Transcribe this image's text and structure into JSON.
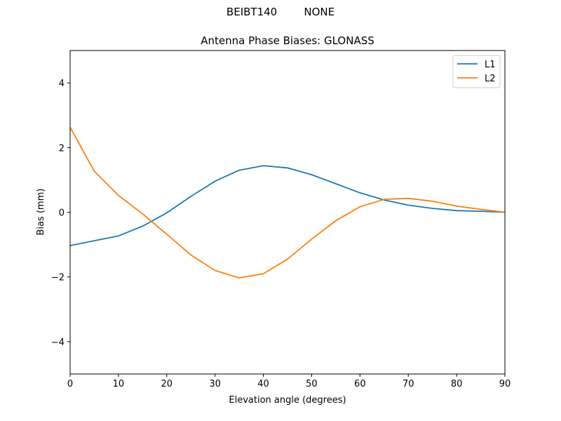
{
  "figure": {
    "suptitle": "BEIBT140        NONE",
    "title": "Antenna Phase Biases: GLONASS"
  },
  "chart_data": {
    "type": "line",
    "title": "Antenna Phase Biases: GLONASS",
    "suptitle": "BEIBT140        NONE",
    "xlabel": "Elevation angle (degrees)",
    "ylabel": "Bias (mm)",
    "xlim": [
      0,
      90
    ],
    "ylim": [
      -5,
      5
    ],
    "xticks": [
      0,
      10,
      20,
      30,
      40,
      50,
      60,
      70,
      80,
      90
    ],
    "yticks": [
      -4,
      -2,
      0,
      2,
      4
    ],
    "ytick_labels": [
      "−4",
      "−2",
      "0",
      "2",
      "4"
    ],
    "grid": false,
    "legend_position": "upper right",
    "x": [
      0,
      5,
      10,
      15,
      20,
      25,
      30,
      35,
      40,
      45,
      50,
      55,
      60,
      65,
      70,
      75,
      80,
      85,
      90
    ],
    "series": [
      {
        "name": "L1",
        "color": "#1f77b4",
        "values": [
          -1.03,
          -0.88,
          -0.73,
          -0.43,
          -0.02,
          0.49,
          0.96,
          1.3,
          1.44,
          1.37,
          1.16,
          0.88,
          0.6,
          0.38,
          0.22,
          0.12,
          0.05,
          0.03,
          0.0
        ]
      },
      {
        "name": "L2",
        "color": "#ff7f0e",
        "values": [
          2.63,
          1.27,
          0.52,
          -0.05,
          -0.68,
          -1.32,
          -1.8,
          -2.03,
          -1.9,
          -1.45,
          -0.83,
          -0.26,
          0.17,
          0.4,
          0.43,
          0.34,
          0.19,
          0.09,
          0.0
        ]
      }
    ]
  }
}
